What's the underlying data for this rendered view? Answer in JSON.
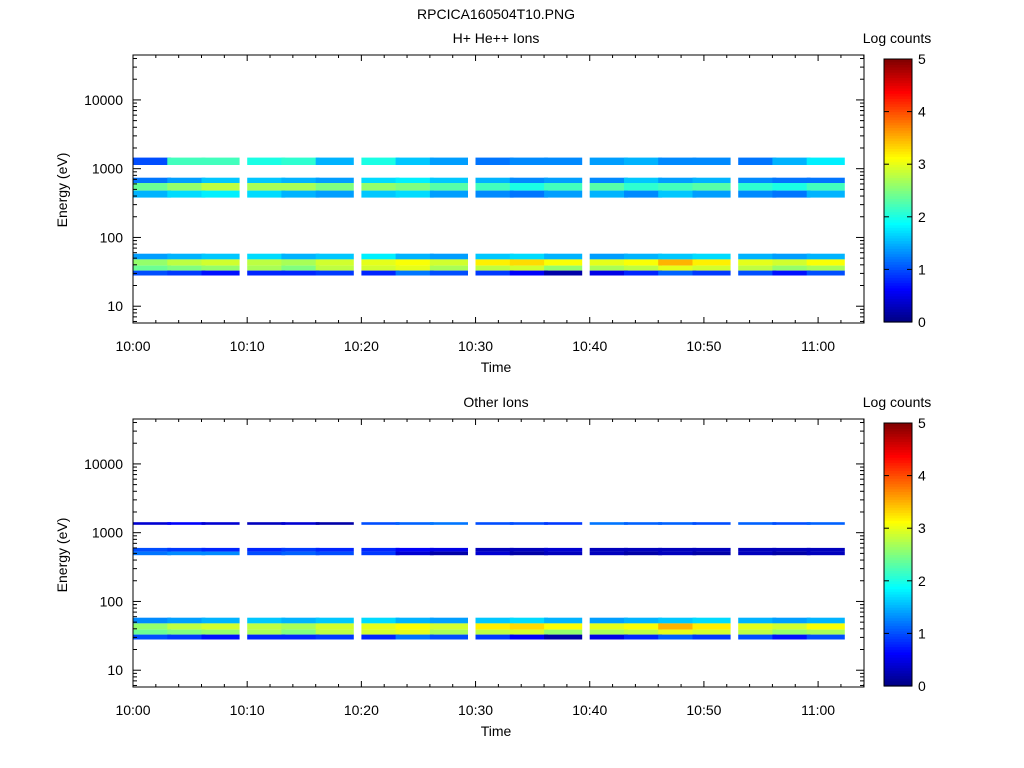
{
  "figure_title": "RPCICA160504T10.PNG",
  "chart_data": [
    {
      "type": "heatmap",
      "title": "H+ He++ Ions",
      "xlabel": "Time",
      "ylabel": "Energy (eV)",
      "x_range": [
        "10:00",
        "11:04"
      ],
      "x_ticks": [
        "10:00",
        "10:10",
        "10:20",
        "10:30",
        "10:40",
        "10:50",
        "11:00"
      ],
      "y_scale": "log",
      "y_range": [
        5.7,
        45000
      ],
      "y_ticks": [
        "10",
        "100",
        "1000",
        "10000"
      ],
      "colorbar": {
        "label": "Log counts",
        "range": [
          0,
          5
        ],
        "ticks": [
          "0",
          "1",
          "2",
          "3",
          "4",
          "5"
        ],
        "colormap": "jet"
      },
      "time_bins": [
        "10:00",
        "10:03",
        "10:06",
        "10:10",
        "10:13",
        "10:16",
        "10:20",
        "10:23",
        "10:26",
        "10:30",
        "10:33",
        "10:36",
        "10:40",
        "10:43",
        "10:46",
        "10:49",
        "10:53",
        "10:56",
        "10:59"
      ],
      "cells": [
        {
          "t": [
            0,
            19
          ],
          "e": [
            1130,
            1450
          ],
          "v": [
            1.0,
            2.2,
            2.2,
            2.0,
            2.1,
            1.5,
            2.0,
            1.6,
            1.4,
            1.2,
            1.3,
            1.3,
            1.4,
            1.5,
            1.3,
            1.3,
            1.2,
            1.5,
            1.8
          ]
        },
        {
          "t": [
            0,
            19
          ],
          "e": [
            620,
            740
          ],
          "v": [
            1.2,
            1.4,
            1.6,
            1.6,
            1.5,
            1.4,
            1.7,
            1.8,
            1.6,
            1.5,
            1.3,
            1.4,
            1.3,
            1.6,
            1.4,
            1.5,
            1.3,
            1.2,
            1.2
          ]
        },
        {
          "t": [
            0,
            19
          ],
          "e": [
            480,
            620
          ],
          "v": [
            2.4,
            2.6,
            2.8,
            2.7,
            2.7,
            2.5,
            2.6,
            2.5,
            2.3,
            2.2,
            2.0,
            2.2,
            2.3,
            2.1,
            2.2,
            2.3,
            2.1,
            2.0,
            2.2
          ]
        },
        {
          "t": [
            0,
            19
          ],
          "e": [
            380,
            480
          ],
          "v": [
            1.5,
            1.7,
            1.8,
            1.7,
            1.5,
            1.4,
            1.6,
            1.7,
            1.4,
            1.3,
            1.2,
            1.4,
            1.5,
            1.3,
            1.6,
            1.4,
            1.3,
            1.2,
            1.5
          ]
        },
        {
          "t": [
            0,
            19
          ],
          "e": [
            48,
            58
          ],
          "v": [
            1.4,
            1.5,
            1.6,
            1.7,
            1.5,
            1.6,
            1.8,
            1.5,
            1.4,
            1.6,
            1.7,
            1.5,
            1.4,
            1.5,
            1.6,
            1.7,
            1.5,
            1.4,
            1.5
          ]
        },
        {
          "t": [
            0,
            19
          ],
          "e": [
            39,
            48
          ],
          "v": [
            2.6,
            2.8,
            2.9,
            2.8,
            2.7,
            2.9,
            3.0,
            3.1,
            2.9,
            3.2,
            3.3,
            3.1,
            3.0,
            3.1,
            3.5,
            3.2,
            3.0,
            2.9,
            3.1
          ]
        },
        {
          "t": [
            0,
            19
          ],
          "e": [
            33,
            39
          ],
          "v": [
            2.4,
            2.5,
            2.6,
            2.7,
            2.5,
            2.8,
            2.9,
            3.0,
            2.7,
            2.8,
            2.9,
            2.6,
            2.7,
            2.8,
            3.0,
            2.9,
            2.8,
            2.6,
            2.7
          ]
        },
        {
          "t": [
            0,
            19
          ],
          "e": [
            28,
            33
          ],
          "v": [
            1.0,
            0.9,
            0.7,
            0.8,
            0.8,
            0.9,
            0.8,
            1.2,
            1.0,
            0.9,
            0.6,
            0.2,
            0.5,
            0.8,
            1.1,
            0.9,
            1.0,
            0.7,
            1.0
          ]
        }
      ]
    },
    {
      "type": "heatmap",
      "title": "Other Ions",
      "xlabel": "Time",
      "ylabel": "Energy (eV)",
      "x_range": [
        "10:00",
        "11:04"
      ],
      "x_ticks": [
        "10:00",
        "10:10",
        "10:20",
        "10:30",
        "10:40",
        "10:50",
        "11:00"
      ],
      "y_scale": "log",
      "y_range": [
        5.7,
        45000
      ],
      "y_ticks": [
        "10",
        "100",
        "1000",
        "10000"
      ],
      "colorbar": {
        "label": "Log counts",
        "range": [
          0,
          5
        ],
        "ticks": [
          "0",
          "1",
          "2",
          "3",
          "4",
          "5"
        ],
        "colormap": "jet"
      },
      "time_bins": [
        "10:00",
        "10:03",
        "10:06",
        "10:10",
        "10:13",
        "10:16",
        "10:20",
        "10:23",
        "10:26",
        "10:30",
        "10:33",
        "10:36",
        "10:40",
        "10:43",
        "10:46",
        "10:49",
        "10:53",
        "10:56",
        "10:59"
      ],
      "cells": [
        {
          "t": [
            0,
            19
          ],
          "e": [
            1300,
            1420
          ],
          "v": [
            0.4,
            0.6,
            0.4,
            0.3,
            0.4,
            0.2,
            1.0,
            1.1,
            1.2,
            1.0,
            1.0,
            0.9,
            1.2,
            1.1,
            1.1,
            1.0,
            1.1,
            1.0,
            1.1
          ]
        },
        {
          "t": [
            0,
            19
          ],
          "e": [
            530,
            600
          ],
          "v": [
            1.0,
            0.9,
            0.8,
            0.8,
            0.9,
            0.8,
            0.8,
            0.6,
            0.5,
            0.3,
            0.3,
            0.4,
            0.3,
            0.3,
            0.3,
            0.3,
            0.3,
            0.3,
            0.3
          ]
        },
        {
          "t": [
            0,
            19
          ],
          "e": [
            470,
            530
          ],
          "v": [
            1.2,
            1.3,
            1.3,
            1.0,
            1.1,
            1.0,
            0.9,
            0.4,
            0.2,
            0.4,
            0.2,
            0.3,
            0.3,
            0.2,
            0.3,
            0.2,
            0.3,
            0.2,
            0.3
          ]
        },
        {
          "t": [
            0,
            19
          ],
          "e": [
            48,
            58
          ],
          "v": [
            1.3,
            1.4,
            1.5,
            1.6,
            1.5,
            1.6,
            1.7,
            1.5,
            1.4,
            1.6,
            1.7,
            1.5,
            1.4,
            1.5,
            1.6,
            1.7,
            1.5,
            1.4,
            1.5
          ]
        },
        {
          "t": [
            0,
            19
          ],
          "e": [
            39,
            48
          ],
          "v": [
            2.6,
            2.8,
            2.9,
            2.8,
            2.7,
            2.9,
            3.0,
            3.1,
            2.9,
            3.2,
            3.3,
            3.1,
            3.0,
            3.1,
            3.5,
            3.2,
            3.0,
            2.9,
            3.1
          ]
        },
        {
          "t": [
            0,
            19
          ],
          "e": [
            33,
            39
          ],
          "v": [
            2.4,
            2.5,
            2.6,
            2.7,
            2.5,
            2.8,
            2.9,
            3.0,
            2.7,
            2.8,
            2.9,
            2.6,
            2.7,
            2.8,
            3.0,
            2.9,
            2.8,
            2.6,
            2.7
          ]
        },
        {
          "t": [
            0,
            19
          ],
          "e": [
            28,
            33
          ],
          "v": [
            1.0,
            0.9,
            0.7,
            0.8,
            0.8,
            0.9,
            0.8,
            1.2,
            1.0,
            0.9,
            0.6,
            0.2,
            0.5,
            0.8,
            1.1,
            0.9,
            1.0,
            0.7,
            1.0
          ]
        }
      ]
    }
  ]
}
